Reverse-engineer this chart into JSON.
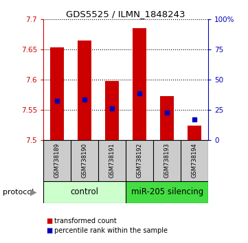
{
  "title": "GDS5525 / ILMN_1848243",
  "samples": [
    "GSM738189",
    "GSM738190",
    "GSM738191",
    "GSM738192",
    "GSM738193",
    "GSM738194"
  ],
  "bar_tops": [
    7.654,
    7.665,
    7.598,
    7.686,
    7.573,
    7.524
  ],
  "bar_bottom": 7.5,
  "blue_markers": [
    7.565,
    7.567,
    7.552,
    7.577,
    7.545,
    7.534
  ],
  "ylim_left": [
    7.5,
    7.7
  ],
  "yticks_left": [
    7.5,
    7.55,
    7.6,
    7.65,
    7.7
  ],
  "ytick_labels_left": [
    "7.5",
    "7.55",
    "7.6",
    "7.65",
    "7.7"
  ],
  "ylim_right": [
    0,
    100
  ],
  "yticks_right": [
    0,
    25,
    50,
    75,
    100
  ],
  "ytick_labels_right": [
    "0",
    "25",
    "50",
    "75",
    "100%"
  ],
  "bar_color": "#cc0000",
  "blue_color": "#0000bb",
  "protocol_labels": [
    "control",
    "miR-205 silencing"
  ],
  "protocol_colors": [
    "#ccffcc",
    "#44dd44"
  ],
  "protocol_text": "protocol",
  "legend_items": [
    "transformed count",
    "percentile rank within the sample"
  ],
  "legend_colors": [
    "#cc0000",
    "#0000bb"
  ],
  "sample_box_color": "#cccccc",
  "left_axis_color": "#cc0000",
  "right_axis_color": "#0000bb",
  "grid_color": "#000000"
}
